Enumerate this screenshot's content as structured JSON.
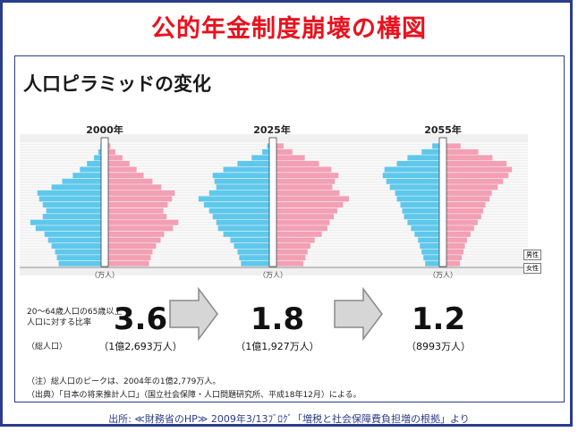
{
  "title": "公的年金制度崩壊の構図",
  "panel_title": "人口ピラミッドの変化",
  "legend": {
    "male": "男性",
    "female": "女性"
  },
  "unit_label": "（万人）",
  "ratio_label": "20～64歳人口の65歳以上人口に対する比率",
  "population_label": "（総人口）",
  "note1": "（注）総人口のピークは、2004年の1億2,779万人。",
  "note2": "（出典）「日本の将来推計人口」（国立社会保障・人口問題研究所、平成18年12月）による。",
  "source": "出所: ≪財務省のHP≫ 2009年3/13ﾌﾞﾛｸﾞ「増税と社会保障費負担増の根拠」より",
  "colors": {
    "male": "#5ec8ec",
    "female": "#f39fb4",
    "accent": "#e8121e",
    "border": "#2b3c8a"
  },
  "chart_data": [
    {
      "type": "bar",
      "title": "2000年",
      "ratio": "3.6",
      "population": "（1億2,693万人）",
      "age_step": 5,
      "male": [
        120,
        125,
        130,
        140,
        150,
        160,
        185,
        200,
        165,
        155,
        165,
        175,
        180,
        140,
        110,
        80,
        60,
        40,
        20,
        8,
        2
      ],
      "female": [
        115,
        120,
        125,
        135,
        148,
        158,
        183,
        198,
        165,
        156,
        168,
        180,
        188,
        150,
        125,
        100,
        80,
        60,
        40,
        20,
        6
      ]
    },
    {
      "type": "bar",
      "title": "2025年",
      "ratio": "1.8",
      "population": "（1億1,927万人）",
      "age_step": 5,
      "male": [
        80,
        85,
        90,
        100,
        110,
        130,
        145,
        150,
        160,
        170,
        185,
        200,
        170,
        150,
        155,
        160,
        130,
        90,
        50,
        20,
        6
      ],
      "female": [
        76,
        82,
        88,
        96,
        108,
        128,
        144,
        150,
        162,
        172,
        188,
        205,
        178,
        158,
        165,
        175,
        155,
        120,
        80,
        45,
        20
      ]
    },
    {
      "type": "bar",
      "title": "2055年",
      "ratio": "1.2",
      "population": "（8993万人）",
      "age_step": 5,
      "male": [
        40,
        45,
        50,
        55,
        60,
        70,
        80,
        90,
        100,
        105,
        110,
        120,
        125,
        140,
        150,
        160,
        155,
        120,
        90,
        50,
        20
      ],
      "female": [
        38,
        43,
        48,
        52,
        58,
        68,
        78,
        88,
        98,
        104,
        110,
        122,
        128,
        145,
        160,
        175,
        185,
        170,
        130,
        90,
        40
      ]
    }
  ]
}
